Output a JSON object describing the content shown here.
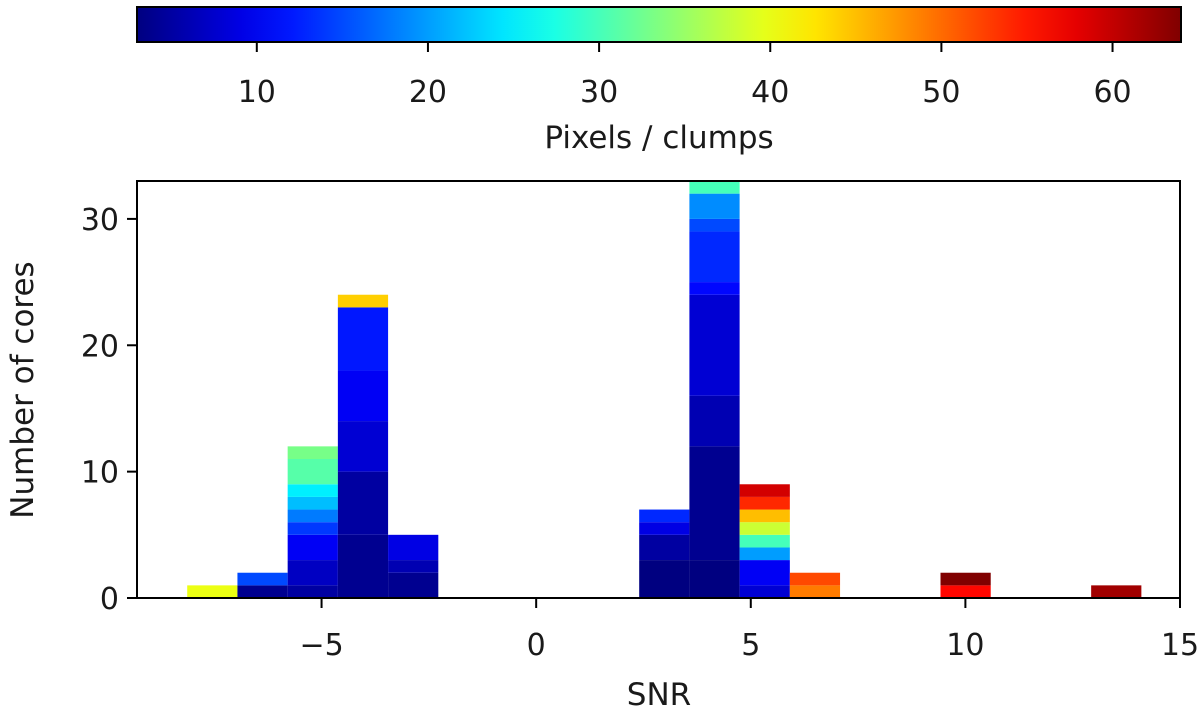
{
  "chart_data": {
    "type": "bar",
    "stacked": true,
    "xlabel": "SNR",
    "ylabel": "Number of cores",
    "xlim": [
      -9.3,
      15
    ],
    "ylim": [
      0,
      33
    ],
    "xticks": [
      -5,
      0,
      5,
      10,
      15
    ],
    "xtick_labels": [
      "−5",
      "0",
      "5",
      "10",
      "15"
    ],
    "yticks": [
      0,
      10,
      20,
      30
    ],
    "ytick_labels": [
      "0",
      "10",
      "20",
      "30"
    ],
    "bin_width": 1.17,
    "colorbar": {
      "label": "Pixels / clumps",
      "colormap": "jet",
      "range": [
        3,
        64
      ],
      "ticks": [
        10,
        20,
        30,
        40,
        50,
        60
      ],
      "tick_labels": [
        "10",
        "20",
        "30",
        "40",
        "50",
        "60"
      ],
      "position": "top"
    },
    "bins": [
      {
        "x_left": -8.13,
        "segments": [
          {
            "count": 1,
            "value": 40
          }
        ]
      },
      {
        "x_left": -6.96,
        "segments": [
          {
            "count": 1,
            "value": 4
          },
          {
            "count": 1,
            "value": 15
          }
        ]
      },
      {
        "x_left": -5.79,
        "segments": [
          {
            "count": 1,
            "value": 5
          },
          {
            "count": 2,
            "value": 7
          },
          {
            "count": 2,
            "value": 10
          },
          {
            "count": 1,
            "value": 14
          },
          {
            "count": 1,
            "value": 18
          },
          {
            "count": 1,
            "value": 22
          },
          {
            "count": 1,
            "value": 25
          },
          {
            "count": 2,
            "value": 31
          },
          {
            "count": 1,
            "value": 33
          }
        ]
      },
      {
        "x_left": -4.62,
        "segments": [
          {
            "count": 5,
            "value": 4
          },
          {
            "count": 5,
            "value": 5
          },
          {
            "count": 4,
            "value": 8
          },
          {
            "count": 4,
            "value": 10
          },
          {
            "count": 5,
            "value": 12
          },
          {
            "count": 1,
            "value": 44
          }
        ]
      },
      {
        "x_left": -3.45,
        "segments": [
          {
            "count": 2,
            "value": 4
          },
          {
            "count": 1,
            "value": 6
          },
          {
            "count": 2,
            "value": 9
          }
        ]
      },
      {
        "x_left": 2.4,
        "segments": [
          {
            "count": 3,
            "value": 3
          },
          {
            "count": 2,
            "value": 5
          },
          {
            "count": 1,
            "value": 9
          },
          {
            "count": 1,
            "value": 13
          }
        ]
      },
      {
        "x_left": 3.57,
        "segments": [
          {
            "count": 3,
            "value": 3
          },
          {
            "count": 9,
            "value": 4
          },
          {
            "count": 4,
            "value": 6
          },
          {
            "count": 8,
            "value": 8
          },
          {
            "count": 1,
            "value": 11
          },
          {
            "count": 4,
            "value": 13
          },
          {
            "count": 1,
            "value": 15
          },
          {
            "count": 2,
            "value": 19
          },
          {
            "count": 1,
            "value": 30
          }
        ]
      },
      {
        "x_left": 4.74,
        "segments": [
          {
            "count": 1,
            "value": 8
          },
          {
            "count": 2,
            "value": 10
          },
          {
            "count": 1,
            "value": 20
          },
          {
            "count": 1,
            "value": 30
          },
          {
            "count": 1,
            "value": 38
          },
          {
            "count": 1,
            "value": 45
          },
          {
            "count": 1,
            "value": 54
          },
          {
            "count": 1,
            "value": 59
          }
        ]
      },
      {
        "x_left": 5.91,
        "segments": [
          {
            "count": 1,
            "value": 49
          },
          {
            "count": 1,
            "value": 52
          }
        ]
      },
      {
        "x_left": 9.42,
        "segments": [
          {
            "count": 1,
            "value": 56
          },
          {
            "count": 1,
            "value": 64
          }
        ]
      },
      {
        "x_left": 12.93,
        "segments": [
          {
            "count": 1,
            "value": 62
          }
        ]
      }
    ]
  }
}
